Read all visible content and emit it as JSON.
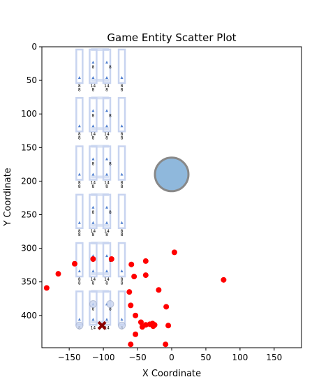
{
  "chart_data": {
    "type": "scatter",
    "title": "Game Entity Scatter Plot",
    "xlabel": "X Coordinate",
    "ylabel": "Y Coordinate",
    "xlim": [
      -190,
      190
    ],
    "ylim": [
      448,
      0
    ],
    "y_inverted": true,
    "xticks": [
      -150,
      -100,
      -50,
      0,
      50,
      100,
      150
    ],
    "yticks": [
      0,
      50,
      100,
      150,
      200,
      250,
      300,
      350,
      400
    ],
    "grid": false,
    "colors": {
      "enemy": "#ff0000",
      "player": "#8b0000",
      "pickup_fill": "#8fb8dc",
      "pickup_edge": "#888888",
      "structure": "#c8d4f0",
      "structure_marker": "#4f7fcf"
    },
    "structure_blocks": [
      {
        "y": 0,
        "cols": [
          {
            "x": -135,
            "label": "8"
          },
          {
            "x": -115,
            "label": "14"
          },
          {
            "x": -95,
            "label": "14"
          },
          {
            "x": -73,
            "label": "8"
          }
        ],
        "mid_labels": [
          "8",
          "8"
        ],
        "low_labels": [
          "8",
          "14",
          "14",
          "8"
        ]
      },
      {
        "y": 72,
        "cols": [
          {
            "x": -135,
            "label": "8"
          },
          {
            "x": -115,
            "label": "8"
          },
          {
            "x": -95,
            "label": "8"
          },
          {
            "x": -73,
            "label": "8"
          }
        ],
        "mid_labels": [
          "8",
          "8"
        ],
        "low_labels": [
          "8",
          "14",
          "14",
          "8"
        ]
      },
      {
        "y": 144,
        "cols": [
          {
            "x": -135,
            "label": "8"
          },
          {
            "x": -115,
            "label": "8"
          },
          {
            "x": -95,
            "label": "8"
          },
          {
            "x": -73,
            "label": "8"
          }
        ],
        "mid_labels": [
          "8",
          "8"
        ],
        "low_labels": [
          "8",
          "14",
          "14",
          "8"
        ]
      },
      {
        "y": 216,
        "cols": [
          {
            "x": -135,
            "label": "8"
          },
          {
            "x": -115,
            "label": "8"
          },
          {
            "x": -95,
            "label": "8"
          },
          {
            "x": -73,
            "label": "8"
          }
        ],
        "mid_labels": [
          "8",
          "8"
        ],
        "low_labels": [
          "8",
          "14",
          "14",
          "8"
        ]
      },
      {
        "y": 288,
        "cols": [
          {
            "x": -135,
            "label": "8"
          },
          {
            "x": -115,
            "label": "8"
          },
          {
            "x": -95,
            "label": "8"
          },
          {
            "x": -73,
            "label": "8"
          }
        ],
        "mid_labels": [
          "8",
          "8"
        ],
        "low_labels": [
          "8",
          "14",
          "14",
          "8"
        ]
      },
      {
        "y": 360,
        "cols": [
          {
            "x": -135,
            "label": "8"
          },
          {
            "x": -115,
            "label": "8"
          },
          {
            "x": -95,
            "label": "8"
          },
          {
            "x": -73,
            "label": "8"
          }
        ],
        "mid_labels": [
          "8",
          "8"
        ],
        "low_labels": [
          "8",
          "14",
          "14",
          "8"
        ]
      }
    ],
    "pickups": [
      {
        "x": 0,
        "y": 190
      }
    ],
    "player": [
      {
        "x": -102,
        "y": 415
      }
    ],
    "enemies": [
      {
        "x": -115,
        "y": 316
      },
      {
        "x": -88,
        "y": 316
      },
      {
        "x": 4,
        "y": 306
      },
      {
        "x": -38,
        "y": 319
      },
      {
        "x": -59,
        "y": 324
      },
      {
        "x": -142,
        "y": 323
      },
      {
        "x": -166,
        "y": 338
      },
      {
        "x": -55,
        "y": 342
      },
      {
        "x": -38,
        "y": 340
      },
      {
        "x": 76,
        "y": 347
      },
      {
        "x": -183,
        "y": 359
      },
      {
        "x": -19,
        "y": 362
      },
      {
        "x": -62,
        "y": 365
      },
      {
        "x": -8,
        "y": 387
      },
      {
        "x": -60,
        "y": 385
      },
      {
        "x": -53,
        "y": 400
      },
      {
        "x": -45,
        "y": 410
      },
      {
        "x": -38,
        "y": 414
      },
      {
        "x": -32,
        "y": 413
      },
      {
        "x": -28,
        "y": 412
      },
      {
        "x": -25,
        "y": 414
      },
      {
        "x": -43,
        "y": 417
      },
      {
        "x": -5,
        "y": 415
      },
      {
        "x": -27,
        "y": 416
      },
      {
        "x": -53,
        "y": 428
      },
      {
        "x": -60,
        "y": 443
      },
      {
        "x": -9,
        "y": 443
      }
    ]
  }
}
